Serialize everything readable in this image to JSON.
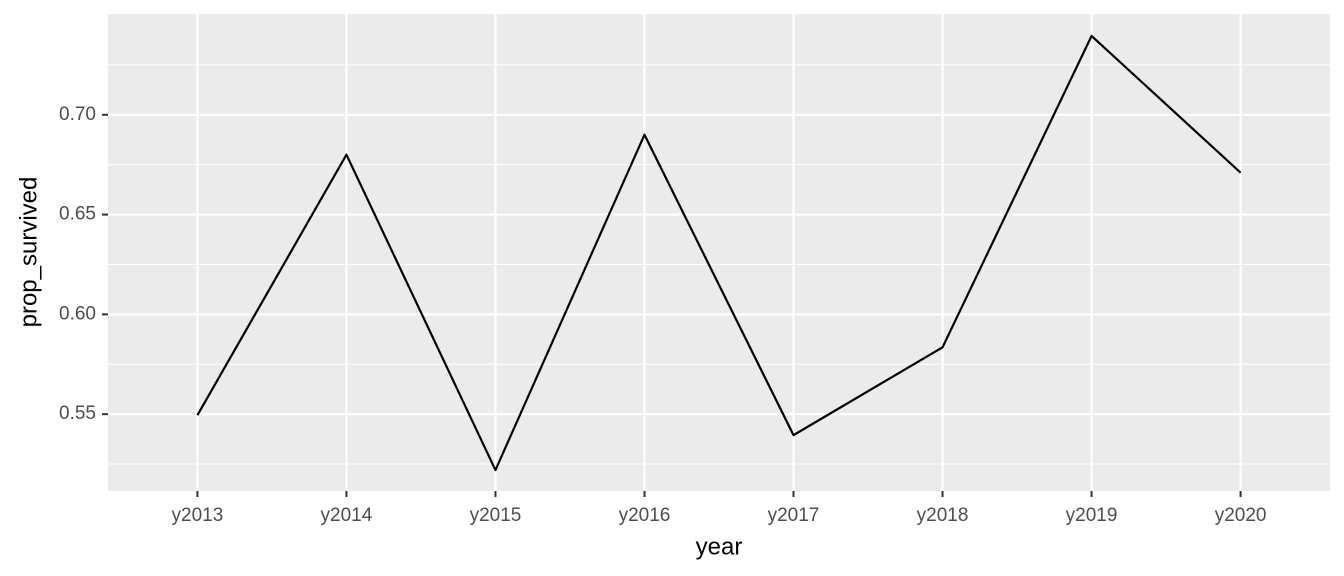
{
  "chart_data": {
    "type": "line",
    "x_label": "year",
    "y_label": "prop_survived",
    "categories": [
      "y2013",
      "y2014",
      "y2015",
      "y2016",
      "y2017",
      "y2018",
      "y2019",
      "y2020"
    ],
    "values": [
      0.5495,
      0.68,
      0.522,
      0.69,
      0.5395,
      0.5835,
      0.7395,
      0.671
    ],
    "color": "#000000",
    "ylim": [
      0.5115,
      0.7505
    ],
    "yticks": [
      {
        "value": 0.55,
        "label": "0.55"
      },
      {
        "value": 0.6,
        "label": "0.60"
      },
      {
        "value": 0.65,
        "label": "0.65"
      },
      {
        "value": 0.7,
        "label": "0.70"
      }
    ],
    "minor_yticks": [
      0.525,
      0.575,
      0.625,
      0.675,
      0.725
    ],
    "grid": true
  }
}
